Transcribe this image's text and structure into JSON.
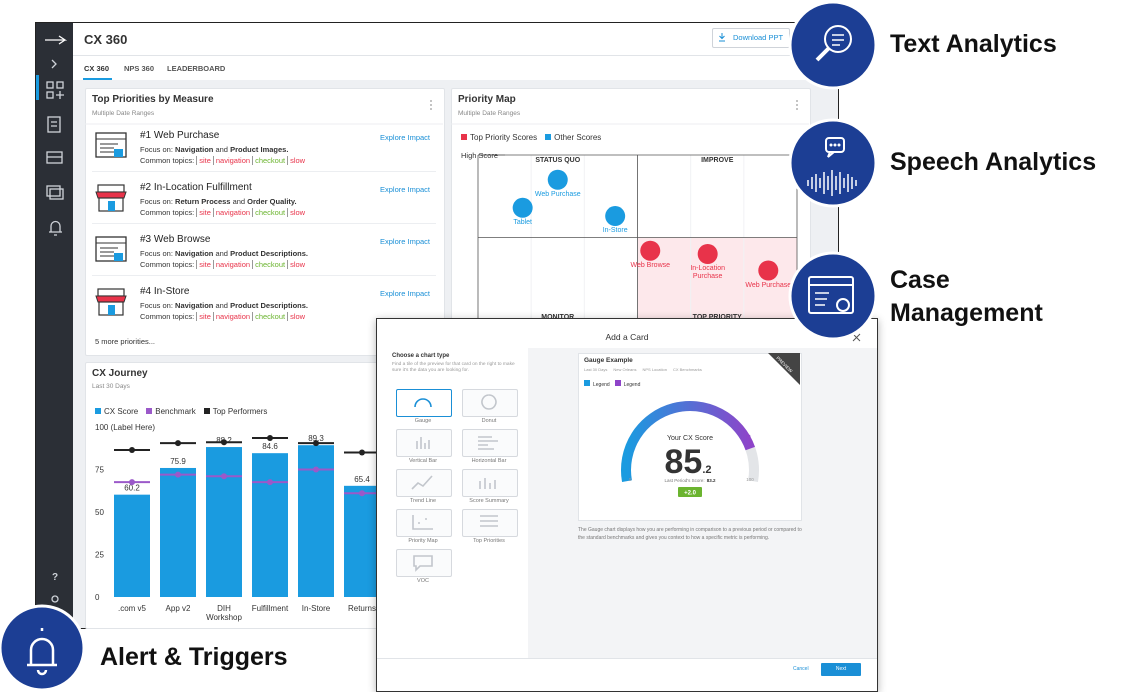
{
  "header": {
    "title": "CX 360",
    "download": "Download PPT",
    "tabs": [
      "CX 360",
      "NPS 360",
      "LEADERBOARD"
    ]
  },
  "sidebar": {
    "help": "?"
  },
  "priorities": {
    "title": "Top Priorities by Measure",
    "subtitle": "Multiple Date Ranges",
    "items": [
      {
        "title": "#1 Web Purchase",
        "focus": [
          "Focus on:",
          "Navigation",
          "and",
          "Product Images."
        ],
        "topics_label": "Common topics:",
        "topics": [
          "site",
          "navigation",
          "checkout",
          "slow"
        ],
        "link": "Explore Impact"
      },
      {
        "title": "#2 In-Location Fulfillment",
        "focus": [
          "Focus on:",
          "Return Process",
          "and",
          "Order Quality."
        ],
        "topics_label": "Common topics:",
        "topics": [
          "site",
          "navigation",
          "checkout",
          "slow"
        ],
        "link": "Explore Impact"
      },
      {
        "title": "#3 Web Browse",
        "focus": [
          "Focus on:",
          "Navigation",
          "and",
          "Product Descriptions."
        ],
        "topics_label": "Common topics:",
        "topics": [
          "site",
          "navigation",
          "checkout",
          "slow"
        ],
        "link": "Explore Impact"
      },
      {
        "title": "#4 In-Store",
        "focus": [
          "Focus on:",
          "Navigation",
          "and",
          "Product Descriptions."
        ],
        "topics_label": "Common topics:",
        "topics": [
          "site",
          "navigation",
          "checkout",
          "slow"
        ],
        "link": "Explore Impact"
      }
    ],
    "more": "5 more priorities..."
  },
  "chart_data": [
    {
      "type": "bar",
      "title": "CX Journey",
      "subtitle": "Last 30 Days",
      "categories": [
        ".com v5",
        "App v2",
        "DIH Workshop",
        "Fulfillment",
        "In-Store",
        "Returns"
      ],
      "series": [
        {
          "name": "CX Score",
          "color": "#1a9be0",
          "values": [
            60.2,
            75.9,
            88.2,
            84.6,
            89.3,
            65.4
          ]
        },
        {
          "name": "Benchmark",
          "color": "#9b59c9",
          "values": [
            67.6,
            72,
            71,
            67.6,
            75,
            61
          ]
        },
        {
          "name": "Top Performers",
          "color": "#222222",
          "values": [
            86.5,
            90.5,
            91,
            93.5,
            90.5,
            85
          ]
        }
      ],
      "ylim": [
        0,
        100
      ],
      "yticks": [
        0,
        25,
        50,
        75,
        {
          "value": 100,
          "label": "100 (Label Here)"
        }
      ],
      "grid": false
    },
    {
      "type": "scatter",
      "title": "Priority Map",
      "subtitle": "Multiple Date Ranges",
      "y_label": "High Score",
      "quadrants": [
        "STATUS QUO",
        "IMPROVE",
        "MONITOR",
        "TOP PRIORITY"
      ],
      "xlim": [
        0,
        100
      ],
      "ylim": [
        0,
        100
      ],
      "series": [
        {
          "name": "Top Priority Scores",
          "color": "#e8334a",
          "x": [
            54,
            72,
            91
          ],
          "values": [
            42,
            40,
            30
          ],
          "labels": [
            "Web Browse",
            "In-Location Purchase",
            "Web Purchase"
          ]
        },
        {
          "name": "Other Scores",
          "color": "#1a9be0",
          "x": [
            25,
            14,
            43
          ],
          "values": [
            85,
            68,
            63
          ],
          "labels": [
            "Web Purchase",
            "Tablet",
            "In-Store"
          ]
        }
      ]
    },
    {
      "type": "gauge",
      "title": "Gauge Example",
      "legend": [
        "Legend",
        "Legend"
      ],
      "colors": [
        "#1a9be0",
        "#8e44c9"
      ],
      "label": "Your CX Score",
      "value": 85.2,
      "value_parts": [
        "85",
        ".2"
      ],
      "previous_label": "Last Period's Score:",
      "previous": 83.2,
      "delta": "+2.0",
      "ylim": [
        0,
        100
      ],
      "yticks": [
        0,
        100
      ]
    }
  ],
  "modal": {
    "title": "Add a Card",
    "section": "Choose a chart type",
    "hint": "Find a tile of the preview for that card on the right to make sure it's the data you are looking for.",
    "types": [
      "Gauge",
      "Donut",
      "Vertical Bar",
      "Horizontal Bar",
      "Trend Line",
      "Score Summary",
      "Priority Map",
      "Top Priorities",
      "VOC"
    ],
    "preview_badge": "PREVIEW",
    "filters": [
      "Last 30 Days",
      "New Orleans",
      "NPS Location",
      "CX Benchmarks"
    ],
    "description": "The Gauge chart displays how you are performing in comparison to a previous period or compared to the standard benchmarks and gives you context to how a specific metric is performing.",
    "cancel": "Cancel",
    "next": "Next"
  },
  "callouts": [
    "Text Analytics",
    "Speech Analytics",
    "Case Management",
    "Alert & Triggers"
  ]
}
